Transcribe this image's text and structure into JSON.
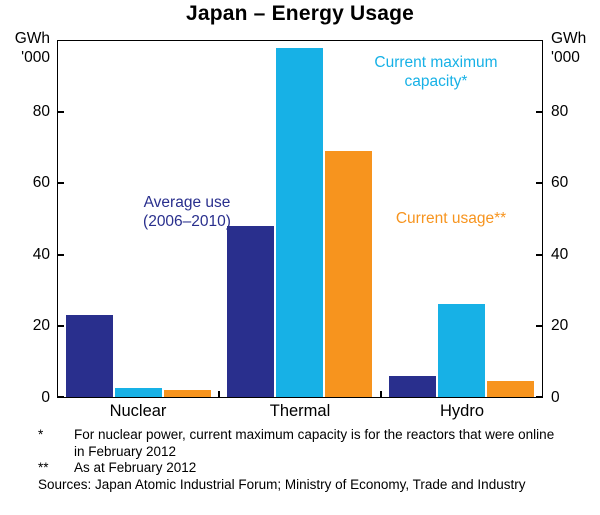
{
  "title": "Japan – Energy Usage",
  "axis": {
    "unit_line1": "GWh",
    "unit_line2": "'000",
    "ticks": [
      0,
      20,
      40,
      60,
      80
    ],
    "ymax": 100
  },
  "chart_data": {
    "type": "bar",
    "title": "Japan – Energy Usage",
    "categories": [
      "Nuclear",
      "Thermal",
      "Hydro"
    ],
    "series": [
      {
        "name": "Average use (2006–2010)",
        "color": "#292f8d",
        "values": [
          23,
          48,
          6
        ]
      },
      {
        "name": "Current maximum capacity*",
        "color": "#17b1e6",
        "values": [
          2.5,
          98,
          26
        ]
      },
      {
        "name": "Current usage**",
        "color": "#f7941e",
        "values": [
          2,
          69,
          4.5
        ]
      }
    ],
    "ylabel": "GWh '000",
    "ylim": [
      0,
      100
    ],
    "grid": false,
    "legend_position": "in-plot colored annotations"
  },
  "annotations": {
    "average_use": {
      "line1": "Average use",
      "line2": "(2006–2010)"
    },
    "max_capacity": {
      "line1": "Current maximum",
      "line2": "capacity*"
    },
    "current_usage": {
      "line1": "Current usage**"
    }
  },
  "footnotes": {
    "items": [
      {
        "marker": "*",
        "text": "For nuclear power, current maximum capacity is for the reactors that were online in February 2012"
      },
      {
        "marker": "**",
        "text": "As at February 2012"
      }
    ],
    "sources": "Sources: Japan Atomic Industrial Forum; Ministry of Economy, Trade and Industry"
  }
}
